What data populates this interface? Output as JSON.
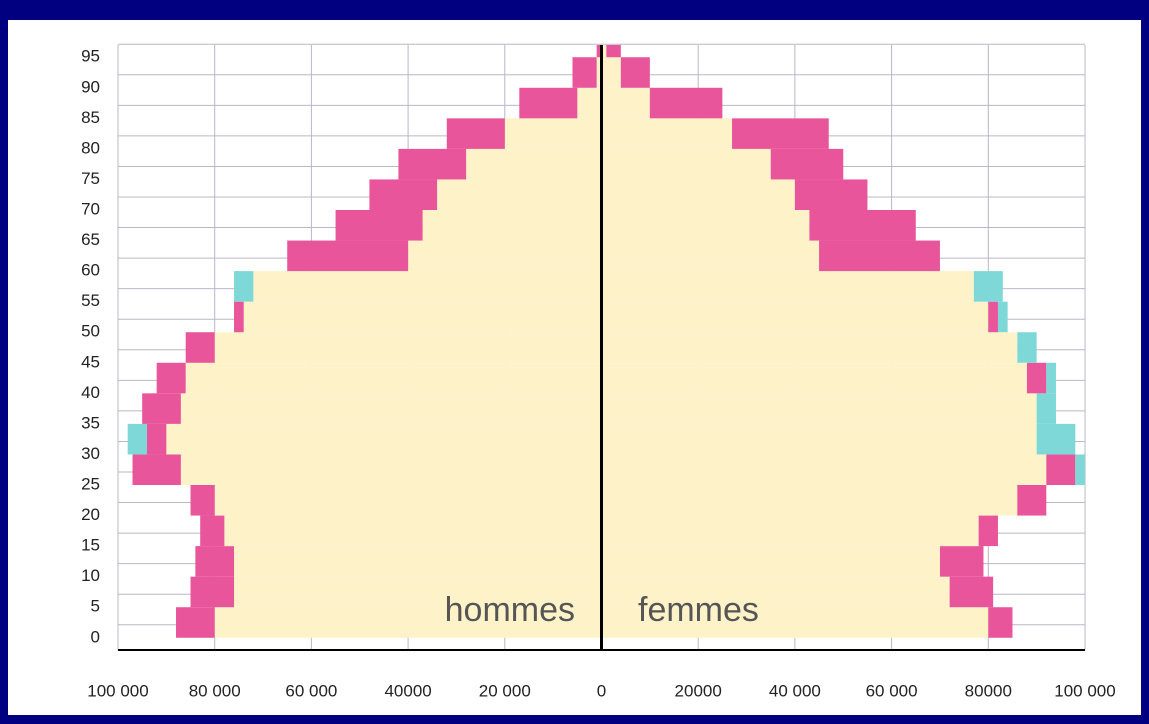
{
  "chart_data": {
    "type": "pyramid",
    "ages": [
      0,
      5,
      10,
      15,
      20,
      25,
      30,
      35,
      40,
      45,
      50,
      55,
      60,
      65,
      70,
      75,
      80,
      85,
      90,
      95
    ],
    "left": {
      "series": [
        {
          "color": "#fdf2c8",
          "values": [
            80000,
            76000,
            76000,
            78000,
            80000,
            87000,
            90000,
            87000,
            86000,
            80000,
            74000,
            72000,
            40000,
            37000,
            34000,
            28000,
            20000,
            5000,
            1000,
            0
          ]
        },
        {
          "color": "#e8559a",
          "values": [
            8000,
            9000,
            8000,
            5000,
            5000,
            10000,
            4000,
            8000,
            6000,
            6000,
            2000,
            0,
            25000,
            18000,
            14000,
            14000,
            12000,
            12000,
            5000,
            1000
          ]
        },
        {
          "color": "#7fd8d8",
          "values": [
            0,
            0,
            0,
            0,
            0,
            0,
            4000,
            0,
            0,
            0,
            0,
            4000,
            0,
            0,
            0,
            0,
            0,
            0,
            0,
            0
          ]
        }
      ]
    },
    "right": {
      "series": [
        {
          "color": "#fdf2c8",
          "values": [
            80000,
            72000,
            70000,
            78000,
            86000,
            92000,
            90000,
            90000,
            88000,
            86000,
            80000,
            77000,
            45000,
            43000,
            40000,
            35000,
            27000,
            10000,
            4000,
            1000
          ]
        },
        {
          "color": "#e8559a",
          "values": [
            5000,
            9000,
            9000,
            4000,
            6000,
            6000,
            0,
            0,
            4000,
            0,
            2000,
            0,
            25000,
            22000,
            15000,
            15000,
            20000,
            15000,
            6000,
            3000
          ]
        },
        {
          "color": "#7fd8d8",
          "values": [
            0,
            0,
            0,
            0,
            0,
            2000,
            8000,
            4000,
            2000,
            4000,
            2000,
            6000,
            0,
            0,
            0,
            0,
            0,
            0,
            0,
            0
          ]
        }
      ]
    },
    "xlim": [
      -100000,
      100000
    ],
    "xticks": [
      {
        "value": -100000,
        "label": "100 000"
      },
      {
        "value": -80000,
        "label": "80 000"
      },
      {
        "value": -60000,
        "label": "60 000"
      },
      {
        "value": -40000,
        "label": "40000"
      },
      {
        "value": -20000,
        "label": "20 000"
      },
      0,
      20000,
      {
        "value": 40000,
        "label": "40 000"
      },
      {
        "value": 60000,
        "label": "60 000"
      },
      {
        "value": 80000,
        "label": "80000"
      },
      {
        "value": 100000,
        "label": "100 000"
      }
    ],
    "ylim": [
      -2,
      97
    ],
    "yticks": [
      0,
      5,
      10,
      15,
      20,
      25,
      30,
      35,
      40,
      45,
      50,
      55,
      60,
      65,
      70,
      75,
      80,
      85,
      90,
      95
    ],
    "grid": true,
    "annotations": [
      "hommes",
      "femmes"
    ]
  }
}
